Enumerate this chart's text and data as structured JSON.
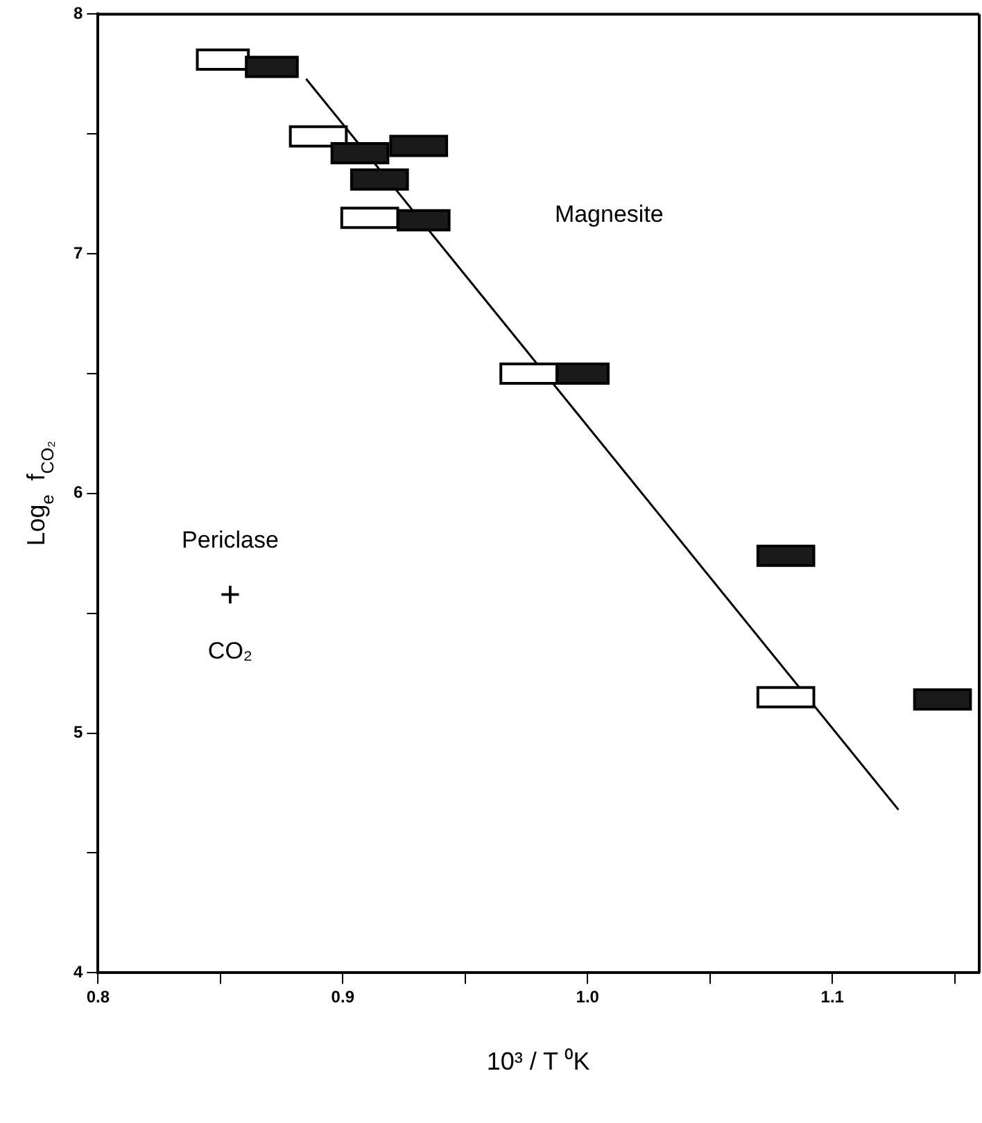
{
  "chart_data": {
    "type": "scatter",
    "xlabel": "10³ / T ⁰K",
    "ylabel": "Log$_{e}$  f$_{CO₂}$",
    "xlim": [
      0.8,
      1.16
    ],
    "xticks": [
      0.8,
      {
        "value": 0.85,
        "label": null
      },
      0.9,
      {
        "value": 0.95,
        "label": null
      },
      {
        "value": 1.0,
        "label": "1.0"
      },
      {
        "value": 1.05,
        "label": null
      },
      1.1,
      {
        "value": 1.15,
        "label": null
      }
    ],
    "ylim": [
      4,
      8
    ],
    "yticks": [
      4,
      {
        "value": 4.5,
        "label": null
      },
      5,
      {
        "value": 5.5,
        "label": null
      },
      6,
      {
        "value": 6.5,
        "label": null
      },
      7,
      {
        "value": 7.5,
        "label": null
      },
      8
    ],
    "grid": false,
    "legend": false,
    "series": [
      {
        "color": "#ffffff",
        "x": [
          0.851,
          0.89,
          0.911,
          0.976,
          1.081
        ],
        "values": [
          7.81,
          7.49,
          7.15,
          6.5,
          5.15
        ],
        "xerrors": [
          0.011,
          0.012,
          0.012,
          0.012,
          0.012
        ]
      },
      {
        "color": "#1a1a1a",
        "x": [
          0.871,
          0.907,
          0.931,
          0.915,
          0.933,
          0.998,
          1.081,
          1.145
        ],
        "values": [
          7.78,
          7.42,
          7.45,
          7.31,
          7.14,
          6.5,
          5.74,
          5.14
        ],
        "xerrors": [
          0.011,
          0.012,
          0.012,
          0.012,
          0.011,
          0.011,
          0.012,
          0.012
        ]
      },
      {
        "type": "line",
        "color": "#000000",
        "x": [
          0.885,
          1.127
        ],
        "values": [
          7.73,
          4.68
        ]
      }
    ],
    "annotations": [
      "Magnesite",
      "Periclase + CO₂"
    ]
  }
}
